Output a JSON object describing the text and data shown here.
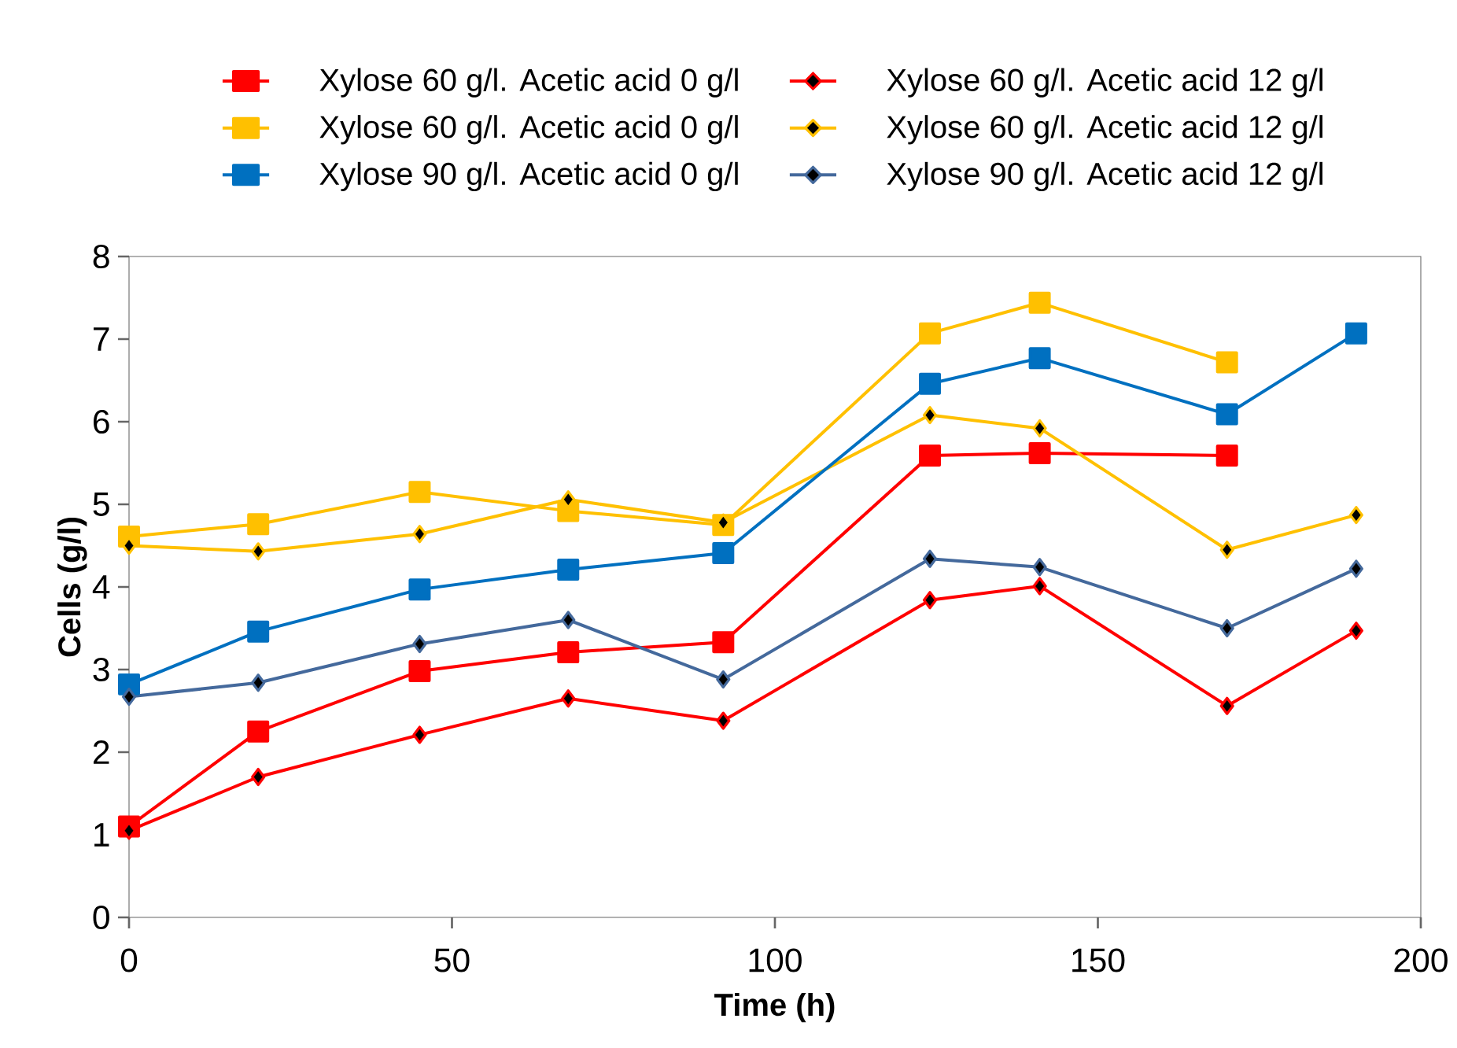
{
  "chart_data": {
    "type": "line",
    "xlabel": "Time (h)",
    "ylabel": "Cells (g/l)",
    "x": [
      0,
      20,
      45,
      68,
      92,
      124,
      141,
      170,
      190
    ],
    "series": [
      {
        "name": "Xylose 60 g/l. Acetic acid 0 g/l",
        "color": "#ff0000",
        "marker": "square",
        "values": [
          1.1,
          2.25,
          2.98,
          3.21,
          3.33,
          5.59,
          5.62,
          5.59,
          null
        ]
      },
      {
        "name": "Xylose 60 g/l. Acetic acid 12 g/l",
        "color": "#ff0000",
        "marker": "diamond",
        "values": [
          1.05,
          1.7,
          2.21,
          2.65,
          2.38,
          3.84,
          4.01,
          2.56,
          3.47
        ]
      },
      {
        "name": "Xylose 60 g/l. Acetic acid 0 g/l",
        "color": "#ffc000",
        "marker": "square",
        "values": [
          4.61,
          4.76,
          5.15,
          4.92,
          4.75,
          7.07,
          7.44,
          6.72,
          null
        ]
      },
      {
        "name": "Xylose 60 g/l. Acetic acid 12 g/l",
        "color": "#ffc000",
        "marker": "diamond",
        "values": [
          4.5,
          4.43,
          4.64,
          5.06,
          4.78,
          6.08,
          5.92,
          4.45,
          4.87
        ]
      },
      {
        "name": "Xylose 90 g/l. Acetic acid 0 g/l",
        "color": "#0070c0",
        "marker": "square",
        "values": [
          2.82,
          3.46,
          3.97,
          4.21,
          4.41,
          6.46,
          6.77,
          6.09,
          7.07
        ]
      },
      {
        "name": "Xylose 90 g/l. Acetic acid 12 g/l",
        "color": "#44699c",
        "marker": "diamond",
        "values": [
          2.67,
          2.84,
          3.31,
          3.6,
          2.88,
          4.34,
          4.24,
          3.5,
          4.22
        ]
      }
    ],
    "xlim": [
      0,
      200
    ],
    "xticks": [
      0,
      50,
      100,
      150,
      200
    ],
    "ylim": [
      0,
      8
    ],
    "yticks": [
      0,
      1,
      2,
      3,
      4,
      5,
      6,
      7,
      8
    ],
    "grid": false,
    "legend": "top"
  }
}
